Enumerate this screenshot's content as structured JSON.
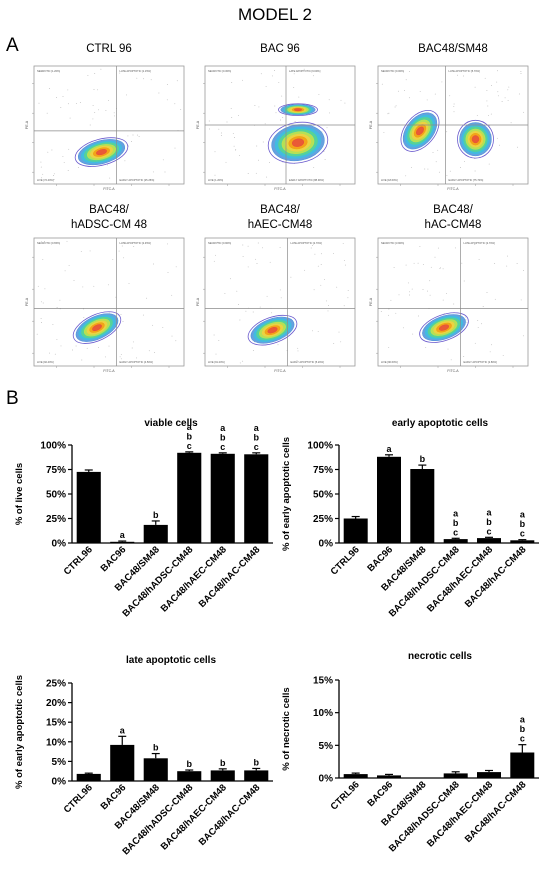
{
  "figure": {
    "title": "MODEL 2",
    "panel_a_label": "A",
    "panel_b_label": "B"
  },
  "flow_plots": [
    {
      "title_lines": [
        "CTRL 96"
      ],
      "quadrant_labels": {
        "ul": "NECROTIC [1.20%]",
        "ur": "LATE APOPTOTIC [1.15%]",
        "ll": "LIVE [72.40%]",
        "lr": "EARLY APOPTOTIC [25.25%]"
      },
      "axis_x": "FITC-A",
      "axis_y": "PE-A"
    },
    {
      "title_lines": [
        "BAC 96"
      ],
      "quadrant_labels": {
        "ul": "NECROTIC [0.30%]",
        "ur": "LATE APOPTOTIC [9.60%]",
        "ll": "LIVE [1.20%]",
        "lr": "EARLY APOPTOTIC [88.90%]"
      },
      "axis_x": "FITC-A",
      "axis_y": "PE-A"
    },
    {
      "title_lines": [
        "BAC48/SM48"
      ],
      "quadrant_labels": {
        "ul": "NECROTIC [0.00%]",
        "ur": "LATE APOPTOTIC [5.70%]",
        "ll": "LIVE [18.60%]",
        "lr": "EARLY APOPTOTIC [75.70%]"
      },
      "axis_x": "FITC-A",
      "axis_y": "PE-A"
    },
    {
      "title_lines": [
        "BAC48/",
        "hADSC-CM 48"
      ],
      "quadrant_labels": {
        "ul": "NECROTIC [0.65%]",
        "ur": "LATE APOPTOTIC [2.45%]",
        "ll": "LIVE [92.40%]",
        "lr": "EARLY APOPTOTIC [4.50%]"
      },
      "axis_x": "FITC-A",
      "axis_y": "PE-A"
    },
    {
      "title_lines": [
        "BAC48/",
        "hAEC-CM48"
      ],
      "quadrant_labels": {
        "ul": "NECROTIC [0.90%]",
        "ur": "LATE APOPTOTIC [2.70%]",
        "ll": "LIVE [91.20%]",
        "lr": "EARLY APOPTOTIC [5.20%]"
      },
      "axis_x": "FITC-A",
      "axis_y": "PE-A"
    },
    {
      "title_lines": [
        "BAC48/",
        "hAC-CM48"
      ],
      "quadrant_labels": {
        "ul": "NECROTIC [3.90%]",
        "ur": "LATE APOPTOTIC [2.70%]",
        "ll": "LIVE [90.60%]",
        "lr": "EARLY APOPTOTIC [2.80%]"
      },
      "axis_x": "FITC-A",
      "axis_y": "PE-A"
    }
  ],
  "chart_data": [
    {
      "type": "bar",
      "title": "viable cells",
      "ylabel": "% of live cells",
      "categories": [
        "CTRL96",
        "BAC96",
        "BAC48/SM48",
        "BAC48/hADSC-CM48",
        "BAC48/hAEC-CM48",
        "BAC48/hAC-CM48"
      ],
      "values": [
        72.5,
        1.2,
        18.5,
        92.0,
        91.0,
        90.5
      ],
      "errors": [
        2.0,
        0.8,
        4.0,
        1.0,
        1.0,
        1.5
      ],
      "significance": [
        [],
        [
          "a"
        ],
        [
          "b"
        ],
        [
          "a",
          "b",
          "c"
        ],
        [
          "a",
          "b",
          "c"
        ],
        [
          "a",
          "b",
          "c"
        ]
      ],
      "ylim": [
        0,
        100
      ],
      "yticks": [
        "0%",
        "25%",
        "50%",
        "75%",
        "100%"
      ],
      "grid": false
    },
    {
      "type": "bar",
      "title": "early apoptotic cells",
      "ylabel": "% of early apoptotic cells",
      "categories": [
        "CTRL96",
        "BAC96",
        "BAC48/SM48",
        "BAC48/hADSC-CM48",
        "BAC48/hAEC-CM48",
        "BAC48/hAC-CM48"
      ],
      "values": [
        25.0,
        88.0,
        75.5,
        4.0,
        5.0,
        2.8
      ],
      "errors": [
        2.0,
        2.0,
        4.0,
        0.8,
        0.8,
        0.6
      ],
      "significance": [
        [],
        [
          "a"
        ],
        [
          "b"
        ],
        [
          "a",
          "b",
          "c"
        ],
        [
          "a",
          "b",
          "c"
        ],
        [
          "a",
          "b",
          "c"
        ]
      ],
      "ylim": [
        0,
        100
      ],
      "yticks": [
        "0%",
        "25%",
        "50%",
        "75%",
        "100%"
      ],
      "grid": false
    },
    {
      "type": "bar",
      "title": "late apoptotic cells",
      "ylabel": "% of early apoptotic cells",
      "categories": [
        "CTRL96",
        "BAC96",
        "BAC48/SM48",
        "BAC48/hADSC-CM48",
        "BAC48/hAEC-CM48",
        "BAC48/hAC-CM48"
      ],
      "values": [
        1.8,
        9.2,
        5.8,
        2.5,
        2.7,
        2.7
      ],
      "errors": [
        0.2,
        2.2,
        1.2,
        0.3,
        0.4,
        0.5
      ],
      "significance": [
        [],
        [
          "a"
        ],
        [
          "b"
        ],
        [
          "b"
        ],
        [
          "b"
        ],
        [
          "b"
        ]
      ],
      "ylim": [
        0,
        25
      ],
      "yticks": [
        "0%",
        "5%",
        "10%",
        "15%",
        "20%",
        "25%"
      ],
      "grid": false
    },
    {
      "type": "bar",
      "title": "necrotic cells",
      "ylabel": "% of necrotic cells",
      "categories": [
        "CTRL96",
        "BAC96",
        "BAC48/SM48",
        "BAC48/hADSC-CM48",
        "BAC48/hAEC-CM48",
        "BAC48/hAC-CM48"
      ],
      "values": [
        0.6,
        0.4,
        0.0,
        0.7,
        0.9,
        3.9
      ],
      "errors": [
        0.15,
        0.15,
        0.0,
        0.25,
        0.25,
        1.2
      ],
      "significance": [
        [],
        [],
        [],
        [],
        [],
        [
          "a",
          "b",
          "c"
        ]
      ],
      "ylim": [
        0,
        15
      ],
      "yticks": [
        "0%",
        "5%",
        "10%",
        "15%"
      ],
      "grid": false
    }
  ]
}
